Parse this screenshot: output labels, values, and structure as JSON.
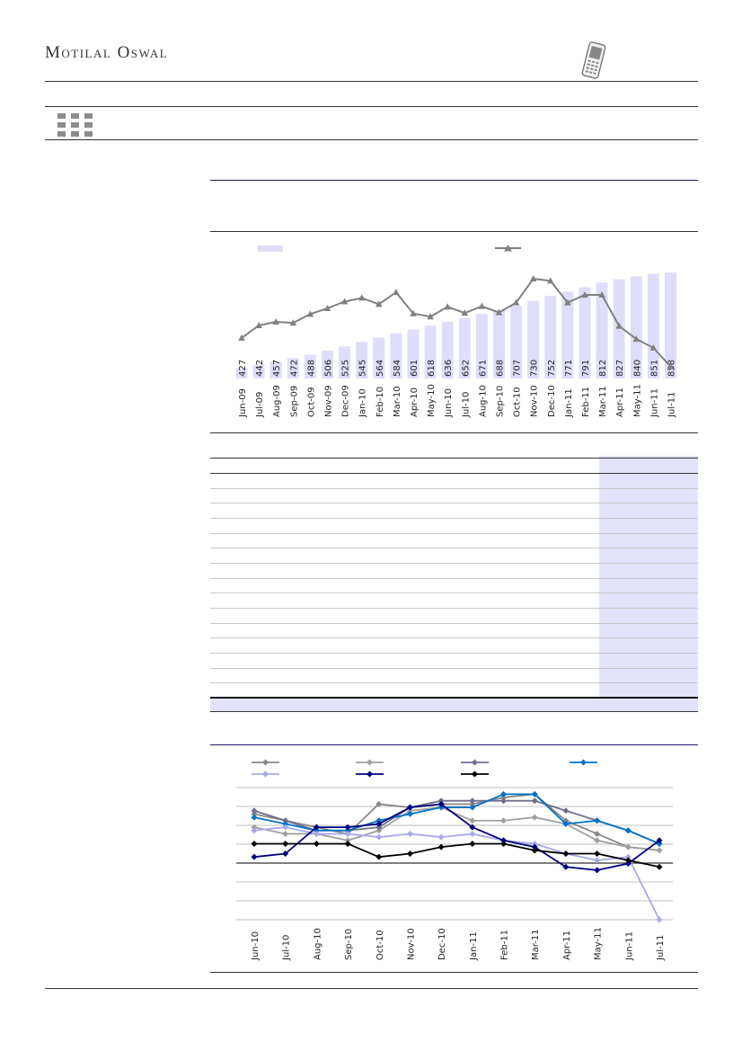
{
  "header": {
    "brand": "Motilal Oswal",
    "icons": {
      "right": "mobile-phone-icon",
      "section": "grid-dots-icon"
    }
  },
  "colors": {
    "bar": "#dedefa",
    "trend_line": "#808080",
    "table_shade": "#e2e2fb"
  },
  "chart_data": [
    {
      "type": "bar",
      "categories": [
        "Jun-09",
        "Jul-09",
        "Aug-09",
        "Sep-09",
        "Oct-09",
        "Nov-09",
        "Dec-09",
        "Jan-10",
        "Feb-10",
        "Mar-10",
        "Apr-10",
        "May-10",
        "Jun-10",
        "Jul-10",
        "Aug-10",
        "Sep-10",
        "Oct-10",
        "Nov-10",
        "Dec-10",
        "Jan-11",
        "Feb-11",
        "Mar-11",
        "Apr-11",
        "May-11",
        "Jun-11",
        "Jul-11"
      ],
      "series": [
        {
          "type": "bar",
          "color": "#dedefa",
          "values": [
            427,
            442,
            457,
            472,
            488,
            506,
            525,
            545,
            564,
            584,
            601,
            618,
            636,
            652,
            671,
            688,
            707,
            730,
            752,
            771,
            791,
            812,
            827,
            840,
            851,
            858
          ]
        },
        {
          "type": "line",
          "marker": "triangle",
          "color": "#808080",
          "values": [
            19,
            43,
            50,
            48,
            65,
            76,
            89,
            96,
            84,
            107,
            66,
            60,
            79,
            67,
            80,
            68,
            87,
            133,
            129,
            87,
            102,
            102,
            42,
            17,
            0,
            -36
          ]
        }
      ],
      "ylim_bars": [
        380,
        870
      ],
      "ylim_line": [
        -40,
        140
      ],
      "legend": "top",
      "grid": false
    },
    {
      "type": "line",
      "categories": [
        "Jun-10",
        "Jul-10",
        "Aug-10",
        "Sep-10",
        "Oct-10",
        "Nov-10",
        "Dec-10",
        "Jan-11",
        "Feb-11",
        "Mar-11",
        "Apr-11",
        "May-11",
        "Jun-11",
        "Jul-11"
      ],
      "series": [
        {
          "color": "#888888",
          "values": [
            72,
            70,
            68,
            66,
            75,
            74,
            75,
            75,
            77,
            78,
            70,
            66,
            62,
            61
          ]
        },
        {
          "color": "#a0a0a0",
          "values": [
            68,
            66,
            66,
            64,
            67,
            73,
            74,
            70,
            70,
            71,
            69,
            64,
            62,
            61
          ]
        },
        {
          "color": "#6e6e8e",
          "values": [
            73,
            70,
            67,
            67,
            68,
            74,
            76,
            76,
            76,
            76,
            73,
            70,
            67,
            63
          ]
        },
        {
          "color": "#0072c6",
          "values": [
            71,
            69,
            67,
            67,
            70,
            72,
            74,
            74,
            78,
            78,
            69,
            70,
            67,
            63
          ]
        },
        {
          "color": "#a8a8ec",
          "values": [
            67,
            68,
            66,
            66,
            65,
            66,
            65,
            66,
            64,
            63,
            60,
            58,
            59,
            40
          ]
        },
        {
          "color": "#000080",
          "values": [
            59,
            60,
            68,
            68,
            69,
            74,
            75,
            68,
            64,
            62,
            56,
            55,
            57,
            64
          ]
        },
        {
          "color": "#000000",
          "values": [
            63,
            63,
            63,
            63,
            59,
            60,
            62,
            63,
            63,
            61,
            60,
            60,
            58,
            56
          ]
        }
      ],
      "ylim": [
        40,
        80
      ],
      "legend": "top",
      "grid": true
    }
  ]
}
